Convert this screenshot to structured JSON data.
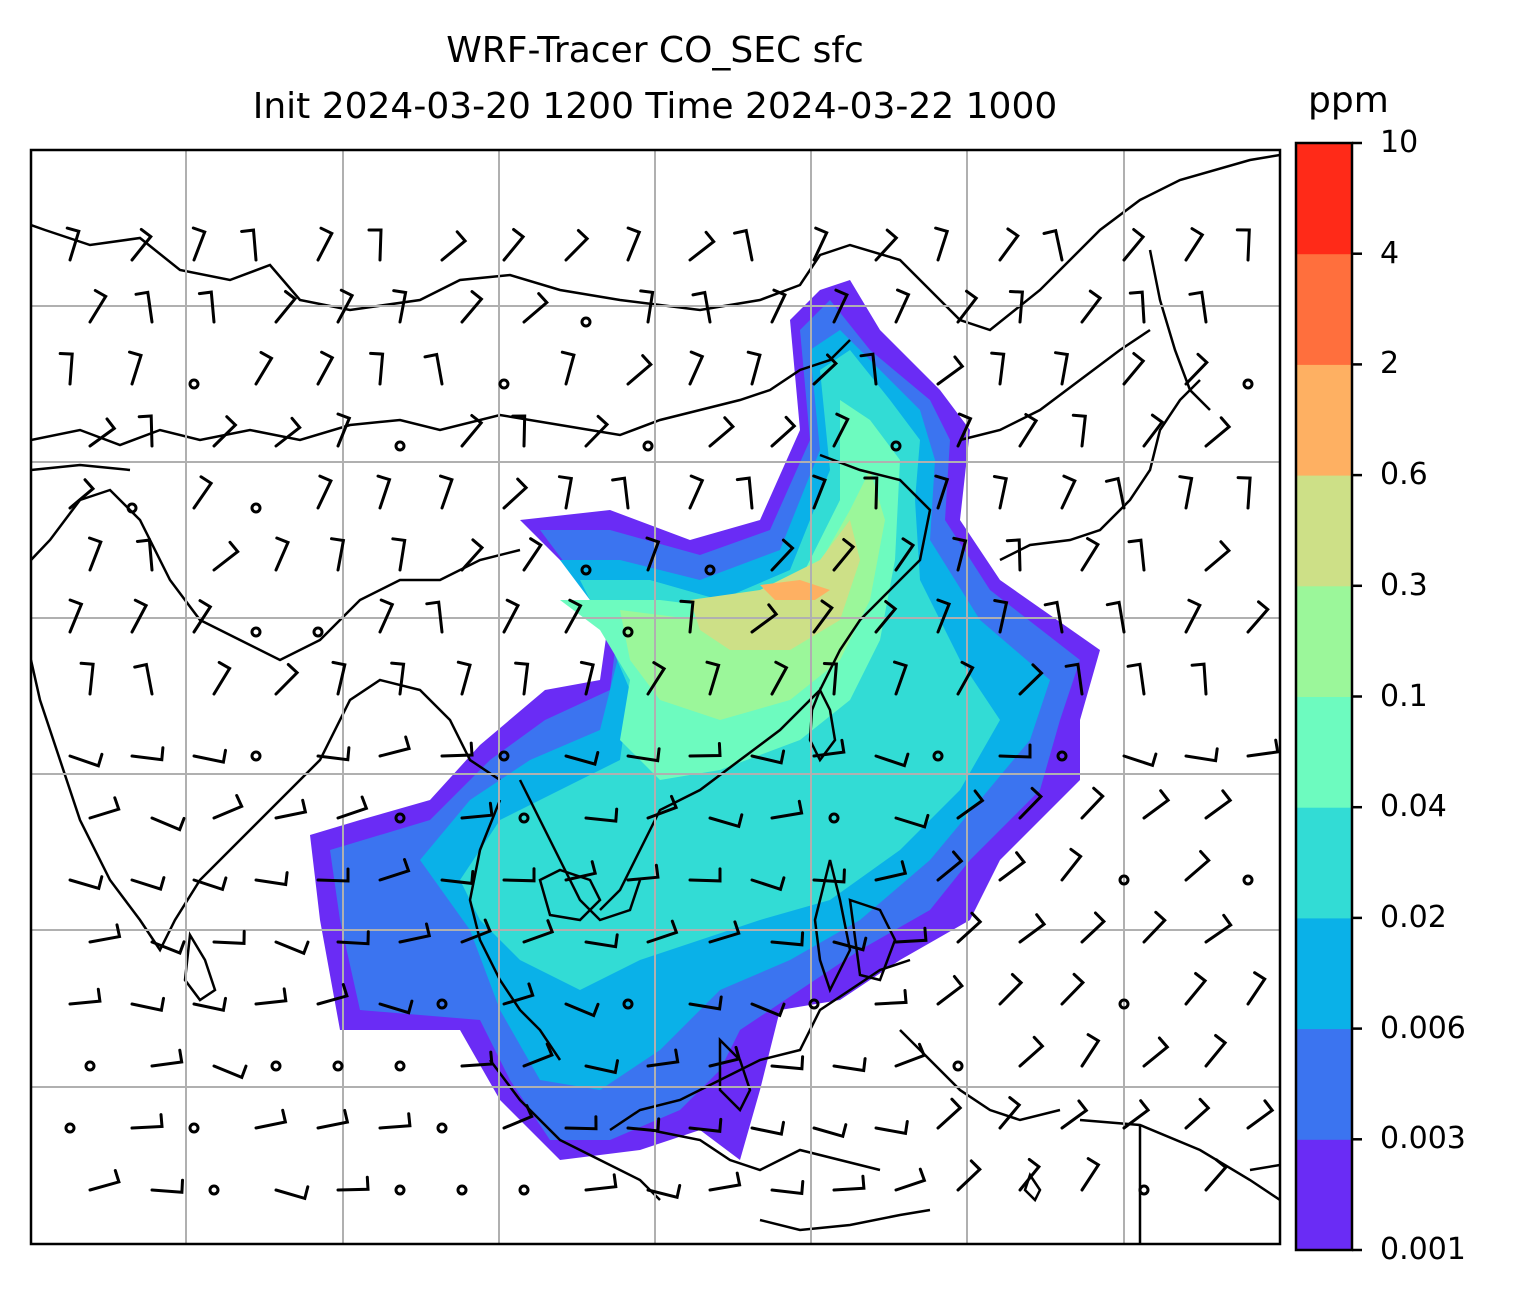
{
  "title": {
    "line1": "WRF-Tracer CO_SEC sfc",
    "line2": "Init 2024-03-20 1200 Time 2024-03-22 1000"
  },
  "colorbar": {
    "label": "ppm",
    "ticks": [
      "10",
      "4",
      "2",
      "0.6",
      "0.3",
      "0.1",
      "0.04",
      "0.02",
      "0.006",
      "0.003",
      "0.001"
    ],
    "colors": [
      "#6a2cf5",
      "#3b74f0",
      "#0ab1e8",
      "#32dcd5",
      "#6dfbbf",
      "#9bf79a",
      "#cde087",
      "#feb062",
      "#ff6f3d",
      "#ff2a18"
    ]
  },
  "map": {
    "projection": "lat-lon grid",
    "gridlines": true,
    "field": "CO_SEC surface concentration",
    "overlay": "wind barbs",
    "calm_marker": "circle-icon"
  }
}
